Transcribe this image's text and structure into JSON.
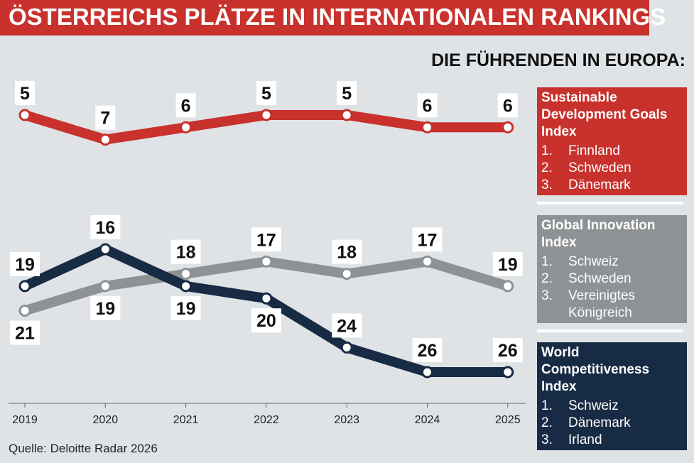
{
  "header": {
    "title": "ÖSTERREICHS PLÄTZE IN INTERNATIONALEN RANKINGS",
    "subtitle": "DIE FÜHRENDEN IN EUROPA:"
  },
  "source": "Quelle: Deloitte Radar 2026",
  "colors": {
    "sdg": "#c8312c",
    "gii": "#8f9294",
    "wci": "#182b44",
    "background": "#dfe3e6"
  },
  "chart_data": {
    "type": "line",
    "x": [
      "2019",
      "2020",
      "2021",
      "2022",
      "2023",
      "2024",
      "2025"
    ],
    "series": [
      {
        "name": "Sustainable Development Goals Index",
        "values": [
          5,
          7,
          6,
          5,
          5,
          6,
          6
        ]
      },
      {
        "name": "Global Innovation Index",
        "values": [
          21,
          19,
          18,
          17,
          18,
          17,
          19
        ]
      },
      {
        "name": "World Competitiveness Index",
        "values": [
          19,
          16,
          19,
          20,
          24,
          26,
          26
        ]
      }
    ],
    "y_scale": "rank",
    "grid": false,
    "legend_placement": "right"
  },
  "legend": [
    {
      "name": "Sustainable Development Goals Index",
      "leaders": [
        {
          "num": "1.",
          "country": "Finnland"
        },
        {
          "num": "2.",
          "country": "Schweden"
        },
        {
          "num": "3.",
          "country": "Dänemark"
        }
      ]
    },
    {
      "name": "Global Innovation Index",
      "leaders": [
        {
          "num": "1.",
          "country": "Schweiz"
        },
        {
          "num": "2.",
          "country": "Schweden"
        },
        {
          "num": "3.",
          "country": "Vereinigtes Königreich"
        }
      ]
    },
    {
      "name": "World Competitiveness Index",
      "leaders": [
        {
          "num": "1.",
          "country": "Schweiz"
        },
        {
          "num": "2.",
          "country": "Dänemark"
        },
        {
          "num": "3.",
          "country": "Irland"
        }
      ]
    }
  ]
}
